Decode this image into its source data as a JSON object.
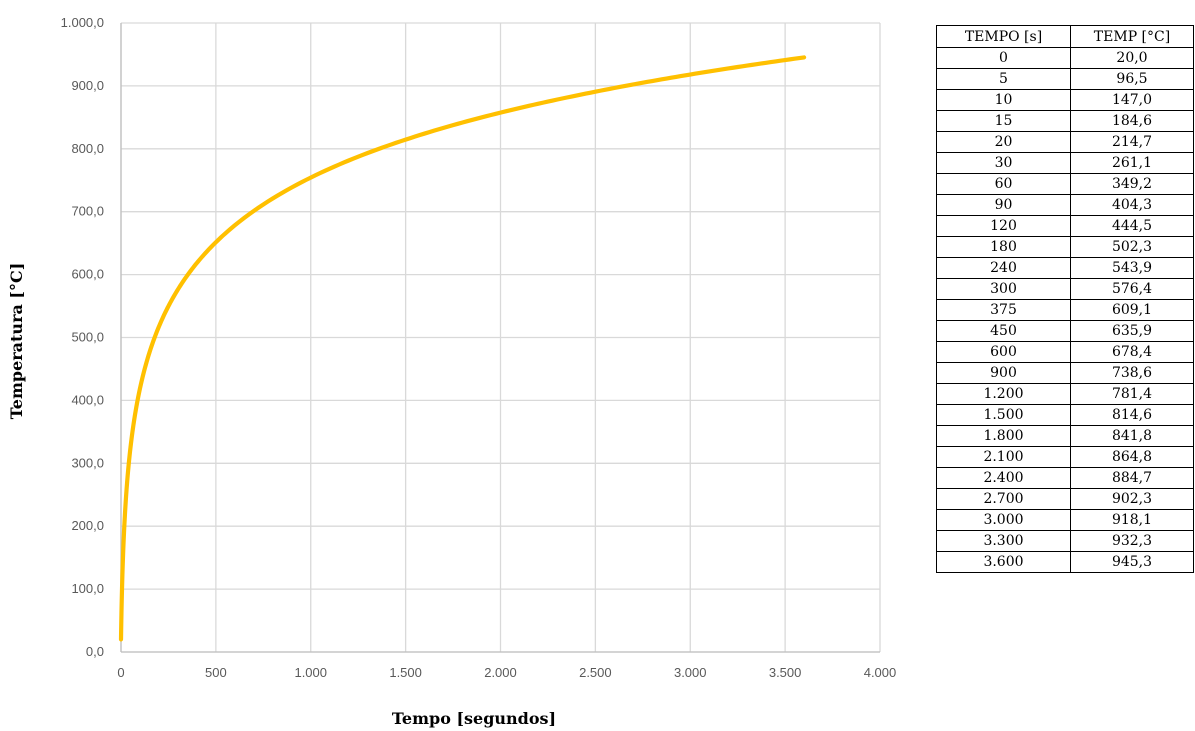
{
  "chart_data": {
    "type": "line",
    "title": "",
    "xlabel": "Tempo [segundos]",
    "ylabel": "Temperatura [°C]",
    "xlim": [
      0,
      4000
    ],
    "ylim": [
      0,
      1000
    ],
    "x_ticks": [
      "0",
      "500",
      "1.000",
      "1.500",
      "2.000",
      "2.500",
      "3.000",
      "3.500",
      "4.000"
    ],
    "y_ticks": [
      "0,0",
      "100,0",
      "200,0",
      "300,0",
      "400,0",
      "500,0",
      "600,0",
      "700,0",
      "800,0",
      "900,0",
      "1.000,0"
    ],
    "grid": true,
    "line_color": "#FFC000",
    "series": [
      {
        "x": [
          0,
          5,
          10,
          15,
          20,
          30,
          60,
          90,
          120,
          180,
          240,
          300,
          375,
          450,
          600,
          900,
          1200,
          1500,
          1800,
          2100,
          2400,
          2700,
          3000,
          3300,
          3600
        ],
        "values": [
          20.0,
          96.5,
          147.0,
          184.6,
          214.7,
          261.1,
          349.2,
          404.3,
          444.5,
          502.3,
          543.9,
          576.4,
          609.1,
          635.9,
          678.4,
          738.6,
          781.4,
          814.6,
          841.8,
          864.8,
          884.7,
          902.3,
          918.1,
          932.3,
          945.3
        ]
      }
    ]
  },
  "table": {
    "headers": [
      "TEMPO [s]",
      "TEMP [°C]"
    ],
    "rows": [
      [
        "0",
        "20,0"
      ],
      [
        "5",
        "96,5"
      ],
      [
        "10",
        "147,0"
      ],
      [
        "15",
        "184,6"
      ],
      [
        "20",
        "214,7"
      ],
      [
        "30",
        "261,1"
      ],
      [
        "60",
        "349,2"
      ],
      [
        "90",
        "404,3"
      ],
      [
        "120",
        "444,5"
      ],
      [
        "180",
        "502,3"
      ],
      [
        "240",
        "543,9"
      ],
      [
        "300",
        "576,4"
      ],
      [
        "375",
        "609,1"
      ],
      [
        "450",
        "635,9"
      ],
      [
        "600",
        "678,4"
      ],
      [
        "900",
        "738,6"
      ],
      [
        "1.200",
        "781,4"
      ],
      [
        "1.500",
        "814,6"
      ],
      [
        "1.800",
        "841,8"
      ],
      [
        "2.100",
        "864,8"
      ],
      [
        "2.400",
        "884,7"
      ],
      [
        "2.700",
        "902,3"
      ],
      [
        "3.000",
        "918,1"
      ],
      [
        "3.300",
        "932,3"
      ],
      [
        "3.600",
        "945,3"
      ]
    ]
  }
}
